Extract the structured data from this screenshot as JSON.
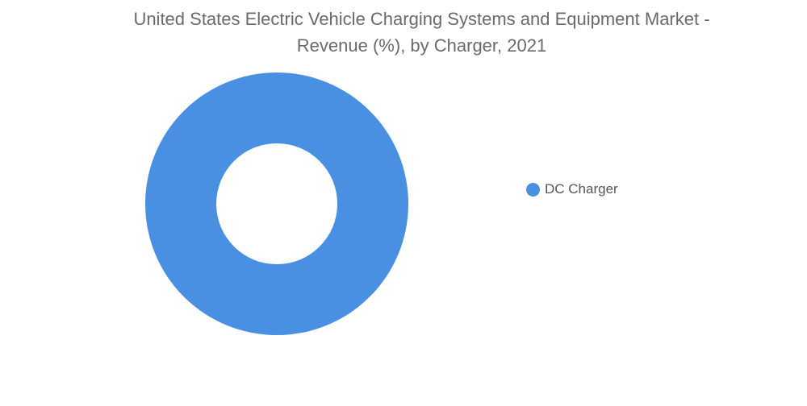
{
  "chart_data": {
    "type": "pie",
    "title_line1": "United States Electric Vehicle Charging Systems and Equipment Market -",
    "title_line2": "Revenue (%), by Charger, 2021",
    "categories": [
      "DC Charger"
    ],
    "values": [
      100
    ],
    "colors": [
      "#4A90E2"
    ],
    "donut": true,
    "legend_position": "right"
  }
}
